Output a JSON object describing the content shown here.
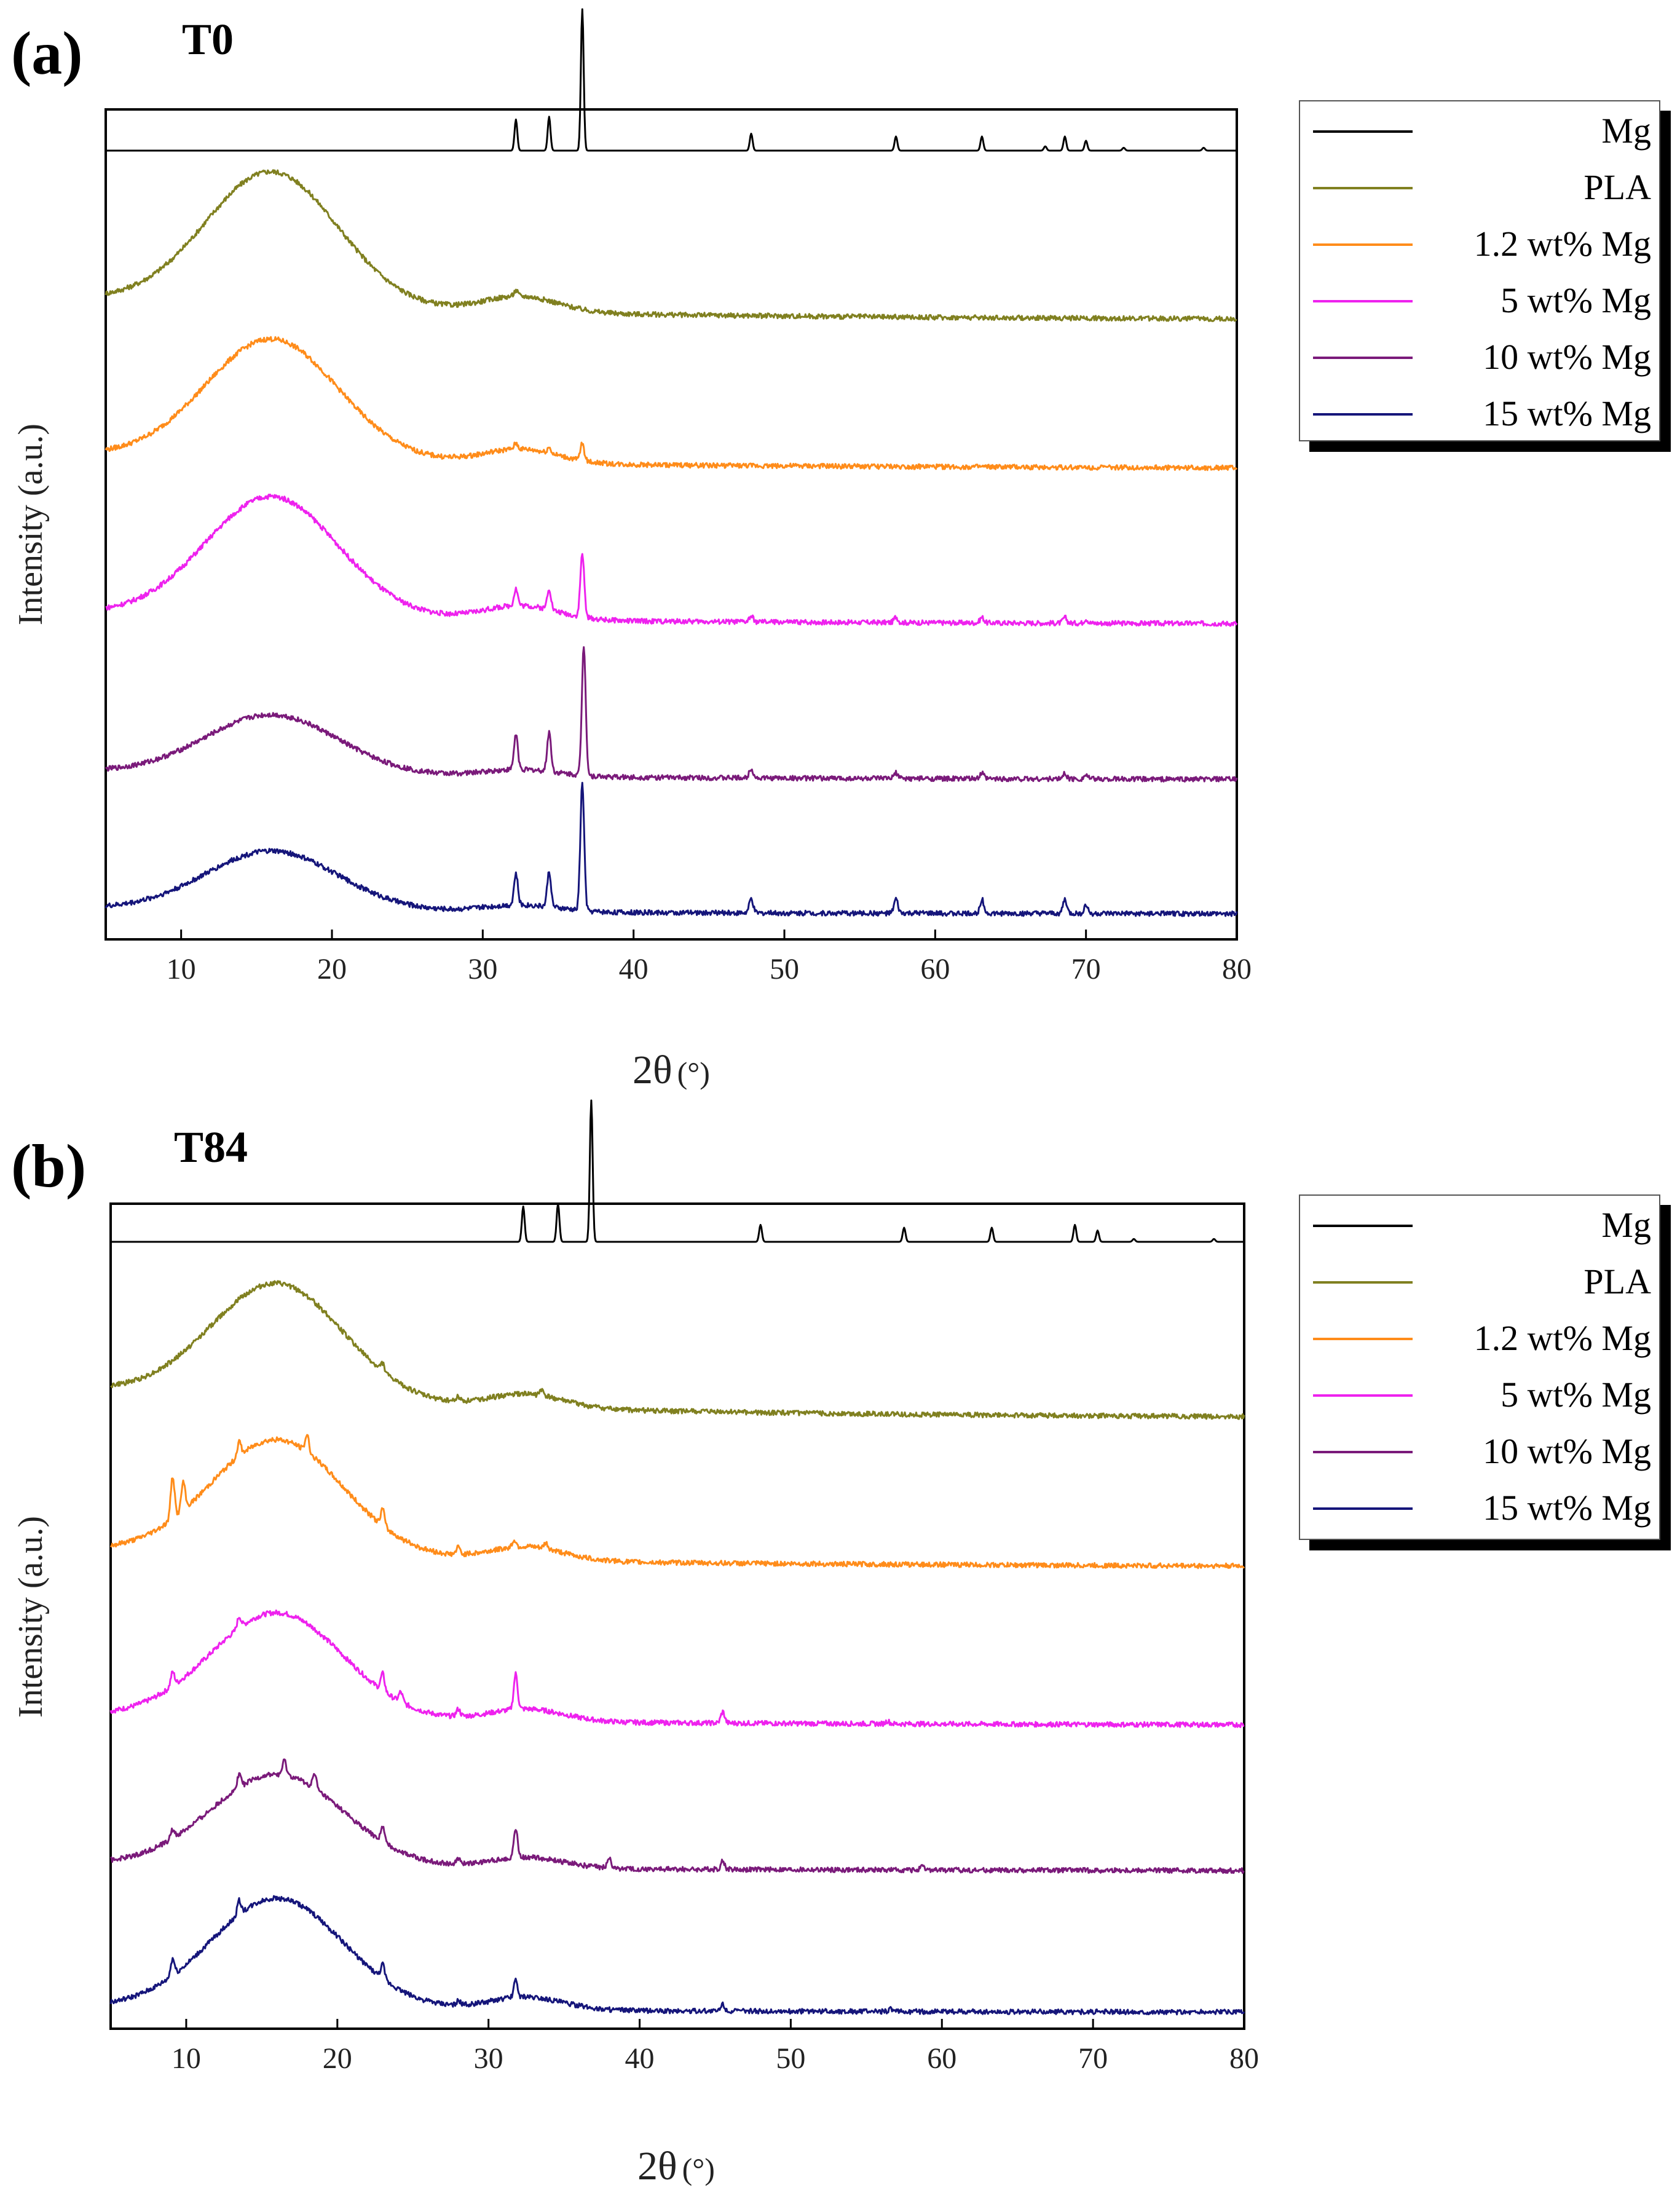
{
  "chart_data": [
    {
      "type": "line",
      "panel_label": "(a)",
      "title": "T0",
      "xlabel": "2θ",
      "xlabel_unit": "(°)",
      "ylabel": "Intensity (a.u.)",
      "xlim": [
        5,
        80
      ],
      "xticks": [
        "10",
        "20",
        "30",
        "40",
        "50",
        "60",
        "70",
        "80"
      ],
      "legend_position": "right",
      "series": [
        {
          "name": "Mg",
          "color": "#000000",
          "offset": 5.0,
          "hump": 0,
          "tail": 0,
          "peaks": [
            [
              32.2,
              0.22
            ],
            [
              34.4,
              0.24
            ],
            [
              36.6,
              1.0
            ],
            [
              47.8,
              0.12
            ],
            [
              57.4,
              0.1
            ],
            [
              63.1,
              0.1
            ],
            [
              67.3,
              0.03
            ],
            [
              68.6,
              0.1
            ],
            [
              70.0,
              0.07
            ],
            [
              72.5,
              0.02
            ],
            [
              77.8,
              0.02
            ]
          ]
        },
        {
          "name": "PLA",
          "color": "#808020",
          "offset": 3.8,
          "hump": 0.95,
          "tail": 0.15,
          "peaks": [
            [
              32.2,
              0.04
            ]
          ]
        },
        {
          "name": "1.2 wt% Mg",
          "color": "#ff8c1a",
          "offset": 2.75,
          "hump": 0.85,
          "tail": 0.1,
          "peaks": [
            [
              32.2,
              0.04
            ],
            [
              34.4,
              0.04
            ],
            [
              36.6,
              0.12
            ]
          ]
        },
        {
          "name": "5 wt% Mg",
          "color": "#ee22ee",
          "offset": 1.65,
          "hump": 0.85,
          "tail": 0.08,
          "peaks": [
            [
              32.2,
              0.12
            ],
            [
              34.4,
              0.15
            ],
            [
              36.6,
              0.45
            ],
            [
              47.8,
              0.04
            ],
            [
              57.4,
              0.04
            ],
            [
              63.1,
              0.04
            ],
            [
              68.6,
              0.04
            ],
            [
              70.0,
              0.03
            ]
          ]
        },
        {
          "name": "10 wt% Mg",
          "color": "#7a1a7a",
          "offset": 0.55,
          "hump": 0.42,
          "tail": 0.06,
          "peaks": [
            [
              32.2,
              0.25
            ],
            [
              34.4,
              0.28
            ],
            [
              36.7,
              0.92
            ],
            [
              47.8,
              0.07
            ],
            [
              57.4,
              0.04
            ],
            [
              63.1,
              0.04
            ],
            [
              68.6,
              0.04
            ],
            [
              70.0,
              0.03
            ]
          ]
        },
        {
          "name": "15 wt% Mg",
          "color": "#15157a",
          "offset": -0.4,
          "hump": 0.42,
          "tail": 0.04,
          "peaks": [
            [
              32.2,
              0.22
            ],
            [
              34.4,
              0.25
            ],
            [
              36.6,
              0.9
            ],
            [
              47.8,
              0.1
            ],
            [
              57.4,
              0.1
            ],
            [
              63.1,
              0.1
            ],
            [
              68.6,
              0.1
            ],
            [
              70.0,
              0.06
            ]
          ]
        }
      ]
    },
    {
      "type": "line",
      "panel_label": "(b)",
      "title": "T84",
      "xlabel": "2θ",
      "xlabel_unit": "(°)",
      "ylabel": "Intensity (a.u.)",
      "xlim": [
        5,
        80
      ],
      "xticks": [
        "10",
        "20",
        "30",
        "40",
        "50",
        "60",
        "70",
        "80"
      ],
      "legend_position": "right",
      "series": [
        {
          "name": "Mg",
          "color": "#000000",
          "offset": 5.0,
          "hump": 0,
          "tail": 0,
          "peaks": [
            [
              32.3,
              0.25
            ],
            [
              34.6,
              0.27
            ],
            [
              36.8,
              1.0
            ],
            [
              48.0,
              0.12
            ],
            [
              57.5,
              0.1
            ],
            [
              63.3,
              0.1
            ],
            [
              68.8,
              0.12
            ],
            [
              70.3,
              0.08
            ],
            [
              72.7,
              0.02
            ],
            [
              78.0,
              0.02
            ]
          ]
        },
        {
          "name": "PLA",
          "color": "#808020",
          "offset": 3.75,
          "hump": 0.82,
          "tail": 0.2,
          "peaks": [
            [
              23.0,
              0.06
            ],
            [
              28.0,
              0.03
            ],
            [
              33.5,
              0.04
            ]
          ]
        },
        {
          "name": "1.2 wt% Mg",
          "color": "#ff8c1a",
          "offset": 2.7,
          "hump": 0.82,
          "tail": 0.12,
          "peaks": [
            [
              9.1,
              0.3
            ],
            [
              9.8,
              0.2
            ],
            [
              13.5,
              0.1
            ],
            [
              18.0,
              0.12
            ],
            [
              23.0,
              0.12
            ],
            [
              28.0,
              0.05
            ],
            [
              31.7,
              0.05
            ],
            [
              33.8,
              0.04
            ]
          ]
        },
        {
          "name": "5 wt% Mg",
          "color": "#ee22ee",
          "offset": 1.58,
          "hump": 0.75,
          "tail": 0.07,
          "peaks": [
            [
              9.1,
              0.1
            ],
            [
              13.5,
              0.08
            ],
            [
              23.0,
              0.12
            ],
            [
              24.2,
              0.07
            ],
            [
              28.0,
              0.05
            ],
            [
              31.8,
              0.25
            ],
            [
              45.5,
              0.08
            ],
            [
              56.4,
              0.02
            ]
          ]
        },
        {
          "name": "10 wt% Mg",
          "color": "#7a1a7a",
          "offset": 0.55,
          "hump": 0.65,
          "tail": 0.05,
          "peaks": [
            [
              9.1,
              0.06
            ],
            [
              13.5,
              0.1
            ],
            [
              16.5,
              0.1
            ],
            [
              18.5,
              0.1
            ],
            [
              23.0,
              0.1
            ],
            [
              28.0,
              0.03
            ],
            [
              31.8,
              0.2
            ],
            [
              38.0,
              0.07
            ],
            [
              45.5,
              0.06
            ],
            [
              58.7,
              0.02
            ]
          ]
        },
        {
          "name": "15 wt% Mg",
          "color": "#15157a",
          "offset": -0.45,
          "hump": 0.78,
          "tail": 0.04,
          "peaks": [
            [
              9.1,
              0.12
            ],
            [
              13.5,
              0.1
            ],
            [
              23.0,
              0.1
            ],
            [
              28.0,
              0.03
            ],
            [
              31.8,
              0.12
            ],
            [
              45.5,
              0.05
            ],
            [
              56.6,
              0.02
            ]
          ]
        }
      ]
    }
  ]
}
